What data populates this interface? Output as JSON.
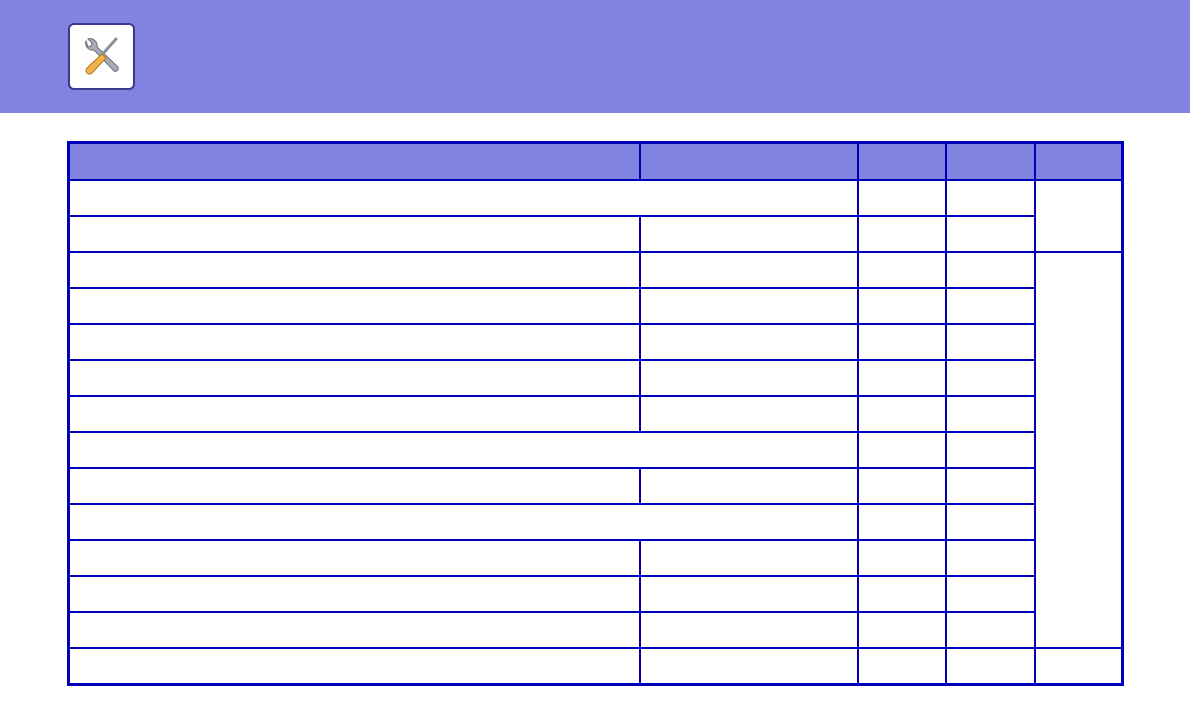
{
  "header": {
    "app_icon": "tools-icon",
    "background_color": "#8083df"
  },
  "table": {
    "border_color": "#0000b8",
    "header_color": "#8083df",
    "columns": [
      "",
      "",
      "",
      "",
      ""
    ]
  }
}
